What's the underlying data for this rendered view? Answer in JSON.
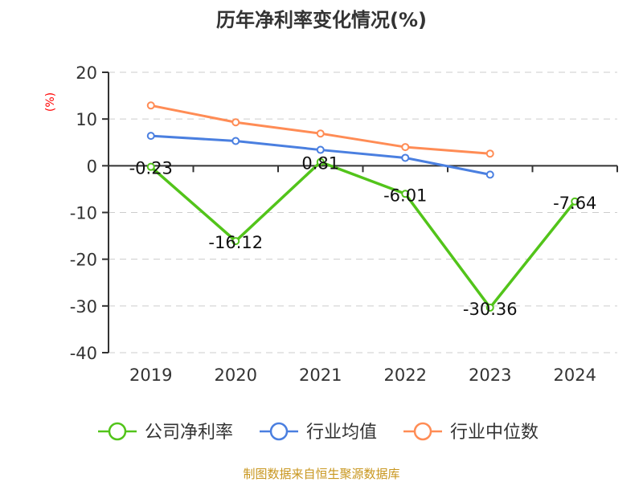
{
  "chart_data": {
    "type": "line",
    "title": "历年净利率变化情况(%)",
    "ylabel": "(%)",
    "categories": [
      "2019",
      "2020",
      "2021",
      "2022",
      "2023",
      "2024"
    ],
    "ylim": [
      -40,
      20
    ],
    "yticks": [
      "20",
      "10",
      "0",
      "-10",
      "-20",
      "-30",
      "-40"
    ],
    "grid": true,
    "legend_position": "bottom",
    "series": [
      {
        "name": "公司净利率",
        "color": "#52c41a",
        "values": [
          -0.23,
          -16.12,
          0.81,
          -6.01,
          -30.36,
          -7.64
        ],
        "labels": [
          "-0.23",
          "-16.12",
          "0.81",
          "-6.01",
          "-30.36",
          "-7.64"
        ]
      },
      {
        "name": "行业均值",
        "color": "#4a7fe0",
        "values": [
          6.4,
          5.3,
          3.4,
          1.7,
          -1.9,
          null
        ]
      },
      {
        "name": "行业中位数",
        "color": "#ff8c55",
        "values": [
          12.9,
          9.3,
          6.9,
          4.0,
          2.6,
          null
        ]
      }
    ]
  },
  "footer": "制图数据来自恒生聚源数据库"
}
